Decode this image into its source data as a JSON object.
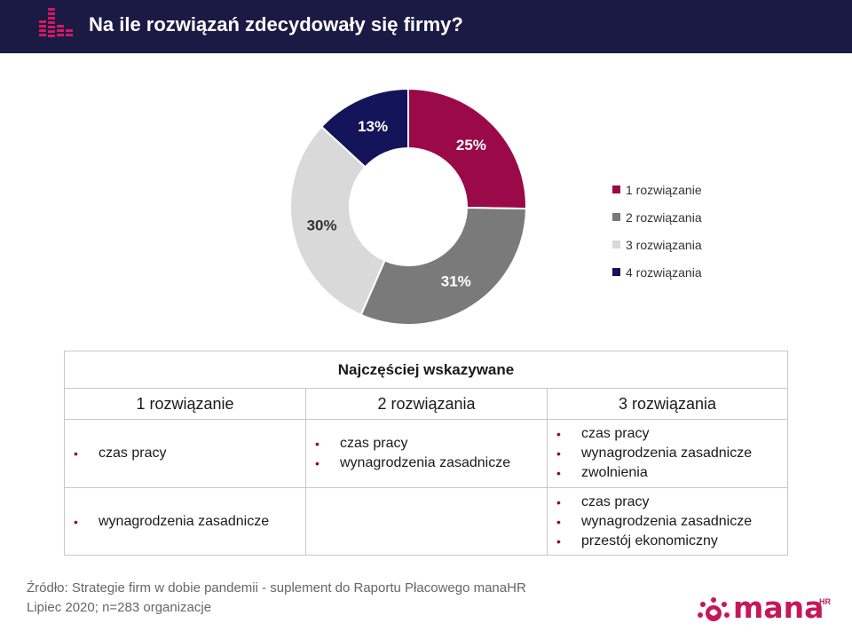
{
  "header": {
    "title": "Na ile rozwiązań zdecydowały się firmy?"
  },
  "chart_data": {
    "type": "pie",
    "donut": true,
    "title": "",
    "categories": [
      "1 rozwiązanie",
      "2 rozwiązania",
      "3 rozwiązania",
      "4 rozwiązania"
    ],
    "values": [
      25,
      31,
      30,
      13
    ],
    "labels": [
      "25%",
      "31%",
      "30%",
      "13%"
    ],
    "colors": [
      "#9b0a48",
      "#7a7a7a",
      "#d9d9d9",
      "#14145a"
    ],
    "label_colors": [
      "#ffffff",
      "#ffffff",
      "#333333",
      "#ffffff"
    ],
    "legend_position": "right"
  },
  "table": {
    "heading": "Najczęściej  wskazywane",
    "columns": [
      "1 rozwiązanie",
      "2 rozwiązania",
      "3 rozwiązania"
    ],
    "rows": [
      [
        [
          "czas pracy"
        ],
        [
          "czas pracy",
          "wynagrodzenia zasadnicze"
        ],
        [
          "czas pracy",
          "wynagrodzenia zasadnicze",
          "zwolnienia"
        ]
      ],
      [
        [
          "wynagrodzenia zasadnicze"
        ],
        [],
        [
          "czas pracy",
          "wynagrodzenia zasadnicze",
          "przestój ekonomiczny"
        ]
      ]
    ]
  },
  "source": {
    "line1": "Źródło: Strategie firm w dobie pandemii - suplement do Raportu Płacowego manaHR",
    "line2": "Lipiec 2020; n=283 organizacje"
  },
  "brand": {
    "name": "mana",
    "suffix": "HR",
    "color": "#c6175b"
  },
  "accent": "#c6175b"
}
